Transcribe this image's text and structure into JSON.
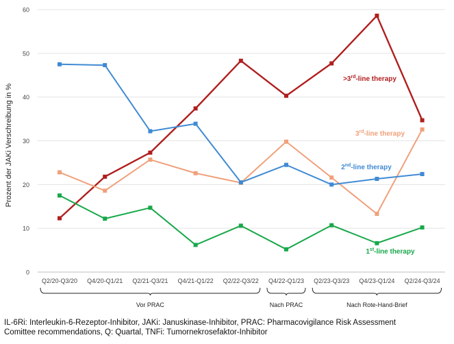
{
  "chart_data": {
    "type": "line",
    "ylabel": "Prozent der JAKi Verschreibung in %",
    "ylim": [
      0,
      60
    ],
    "yticks": [
      0,
      10,
      20,
      30,
      40,
      50,
      60
    ],
    "grid": true,
    "categories": [
      "Q2/20-Q3/20",
      "Q4/20-Q1/21",
      "Q2/21-Q3/21",
      "Q4/21-Q1/22",
      "Q2/22-Q3/22",
      "Q4/22-Q1/23",
      "Q2/23-Q3/23",
      "Q4/23-Q1/24",
      "Q2/24-Q3/24"
    ],
    "groups": [
      {
        "label": "Vor PRAC",
        "from": 0,
        "to": 4
      },
      {
        "label": "Nach PRAC",
        "from": 5,
        "to": 5
      },
      {
        "label": "Nach Rote-Hand-Brief",
        "from": 6,
        "to": 8
      }
    ],
    "series": [
      {
        "name": ">3rd-line therapy",
        "prefix": ">3",
        "sup": "rd",
        "suffix": "-line therapy",
        "color": "#b01e1e",
        "values": [
          12.3,
          21.8,
          27.3,
          37.4,
          48.3,
          40.3,
          47.7,
          58.6,
          34.7
        ]
      },
      {
        "name": "3rd-line therapy",
        "prefix": "3",
        "sup": "rd",
        "suffix": "-line therapy",
        "color": "#f0a07a",
        "values": [
          22.8,
          18.6,
          25.7,
          22.6,
          20.4,
          29.8,
          21.6,
          13.3,
          32.6
        ]
      },
      {
        "name": "2nd-line therapy",
        "prefix": "2",
        "sup": "nd",
        "suffix": "-line therapy",
        "color": "#3f8ad4",
        "values": [
          47.5,
          47.3,
          32.2,
          33.9,
          20.5,
          24.5,
          20.0,
          21.3,
          22.4
        ]
      },
      {
        "name": "1st-line therapy",
        "prefix": "1",
        "sup": "st",
        "suffix": "-line therapy",
        "color": "#18a84a",
        "values": [
          17.5,
          12.2,
          14.7,
          6.2,
          10.6,
          5.2,
          10.7,
          6.6,
          10.2
        ]
      }
    ]
  },
  "footnote": {
    "line1": "IL-6Ri: Interleukin-6-Rezeptor-Inhibitor, JAKi: Januskinase-Inhibitor, PRAC: Pharmacovigilance Risk Assessment",
    "line2": "Comittee recommendations, Q: Quartal, TNFi: Tumornekrosefaktor-Inhibitor"
  }
}
